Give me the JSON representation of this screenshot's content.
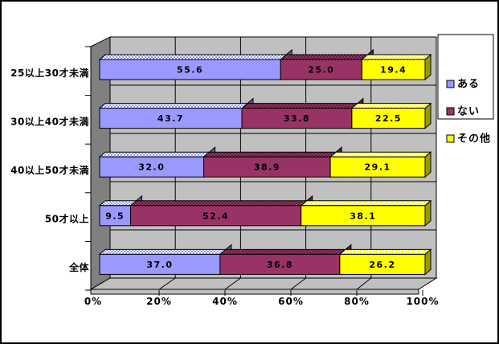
{
  "chart_data": {
    "type": "bar",
    "orientation": "horizontal",
    "stacked": true,
    "style": "3d-excel",
    "title": "",
    "categories": [
      "25以上30才未満",
      "30以上40才未満",
      "40以上50才未満",
      "50才以上",
      "全体"
    ],
    "series": [
      {
        "name": "ある",
        "color": "#9999FF",
        "cap_color": "#5C5C99",
        "top_mix_color": "#FFFFFF",
        "values": [
          55.6,
          43.7,
          32.0,
          9.5,
          37.0
        ]
      },
      {
        "name": "ない",
        "color": "#993366",
        "cap_color": "#5C1F3D",
        "top_mix_color": "#5C1F3D",
        "values": [
          25.0,
          33.8,
          38.9,
          52.4,
          36.8
        ]
      },
      {
        "name": "その他",
        "color": "#FFFF00",
        "cap_color": "#999900",
        "top_mix_color": "#FFFFFF",
        "values": [
          19.4,
          22.5,
          29.1,
          38.1,
          26.2
        ]
      }
    ],
    "value_axis": {
      "min": 0,
      "max": 100,
      "step": 20,
      "tick_labels": [
        "0%",
        "20%",
        "40%",
        "60%",
        "80%",
        "100%"
      ],
      "grid": true
    },
    "category_axis": {
      "grid": true
    },
    "data_labels": {
      "show": true,
      "decimals": 1
    },
    "legend": {
      "position": "right",
      "entries": [
        "ある",
        "ない",
        "その他"
      ]
    },
    "colors": {
      "background": "#FFFFFF",
      "border": "#000000",
      "wall": "#C0C0C0",
      "side_wall": "#808080",
      "floor": "#C0C0C0",
      "gridline": "#000000",
      "text": "#000000",
      "legend_bg": "#FFFFFF"
    }
  }
}
